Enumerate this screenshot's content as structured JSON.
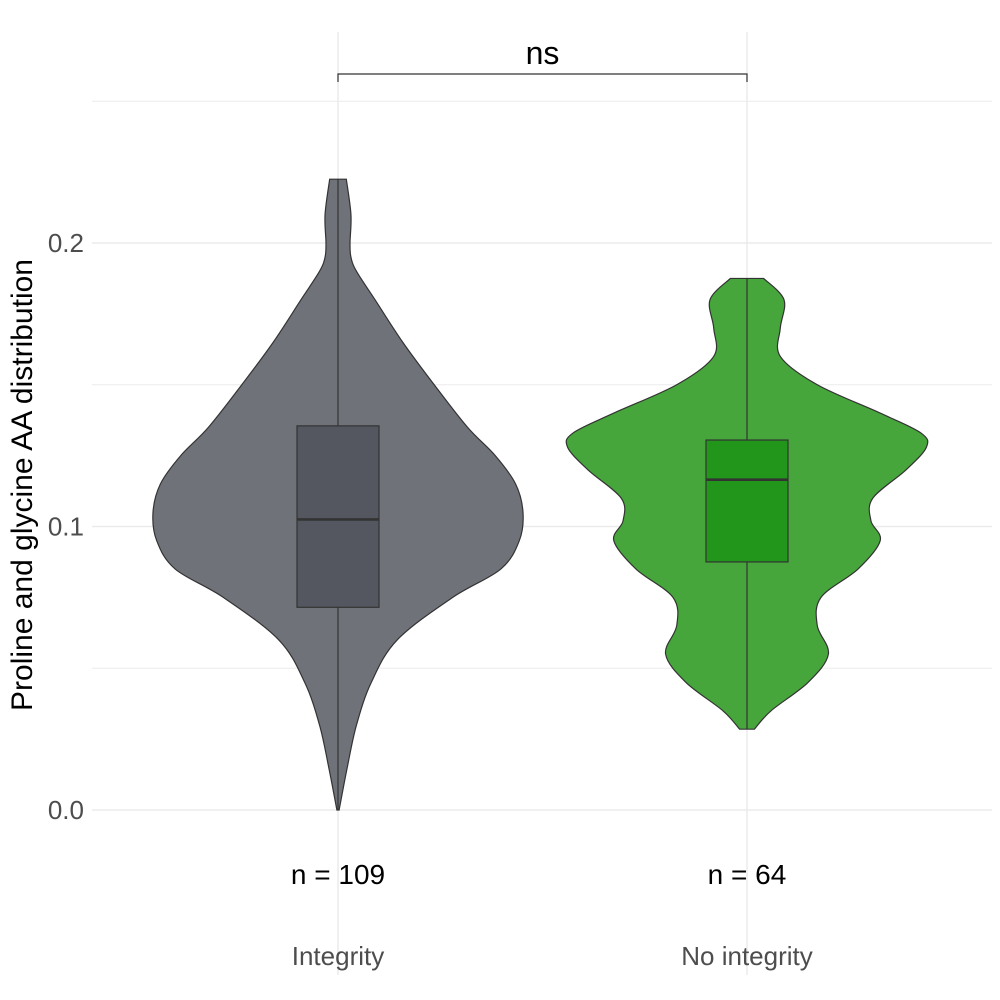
{
  "chart_data": {
    "type": "violin",
    "title": "",
    "xlabel": "",
    "ylabel": "Proline and glycine AA distribution",
    "ylim": [
      -0.045,
      0.277
    ],
    "y_ticks": [
      0.0,
      0.1,
      0.2
    ],
    "y_tick_labels": [
      "0.0",
      "0.1",
      "0.2"
    ],
    "y_minor_ticks": [
      0.05,
      0.15,
      0.25
    ],
    "grid": true,
    "legend": "none",
    "categories": [
      "Integrity",
      "No integrity"
    ],
    "groups": [
      {
        "name": "Integrity",
        "n_label": "n = 109",
        "color": "#6f7279",
        "box_color": "#545760",
        "min": 0.0,
        "max": 0.2225,
        "q1": 0.0715,
        "median": 0.1025,
        "q3": 0.1355,
        "density": [
          [
            0.0,
            0.006
          ],
          [
            0.015,
            0.05
          ],
          [
            0.03,
            0.1
          ],
          [
            0.045,
            0.18
          ],
          [
            0.06,
            0.32
          ],
          [
            0.075,
            0.62
          ],
          [
            0.085,
            0.88
          ],
          [
            0.095,
            0.98
          ],
          [
            0.105,
            1.0
          ],
          [
            0.115,
            0.96
          ],
          [
            0.125,
            0.85
          ],
          [
            0.135,
            0.7
          ],
          [
            0.15,
            0.52
          ],
          [
            0.165,
            0.35
          ],
          [
            0.18,
            0.2
          ],
          [
            0.19,
            0.1
          ],
          [
            0.195,
            0.07
          ],
          [
            0.2,
            0.065
          ],
          [
            0.21,
            0.07
          ],
          [
            0.2225,
            0.045
          ]
        ]
      },
      {
        "name": "No integrity",
        "n_label": "n = 64",
        "color": "#46a63b",
        "box_color": "#22961b",
        "min": 0.0285,
        "max": 0.1875,
        "q1": 0.0875,
        "median": 0.1165,
        "q3": 0.1305,
        "density": [
          [
            0.0285,
            0.04
          ],
          [
            0.035,
            0.13
          ],
          [
            0.045,
            0.33
          ],
          [
            0.055,
            0.44
          ],
          [
            0.065,
            0.38
          ],
          [
            0.075,
            0.4
          ],
          [
            0.085,
            0.6
          ],
          [
            0.095,
            0.72
          ],
          [
            0.102,
            0.67
          ],
          [
            0.11,
            0.68
          ],
          [
            0.12,
            0.86
          ],
          [
            0.128,
            0.97
          ],
          [
            0.133,
            0.94
          ],
          [
            0.14,
            0.72
          ],
          [
            0.15,
            0.38
          ],
          [
            0.16,
            0.18
          ],
          [
            0.17,
            0.18
          ],
          [
            0.18,
            0.2
          ],
          [
            0.1875,
            0.09
          ]
        ]
      }
    ],
    "comparison": {
      "groups": [
        "Integrity",
        "No integrity"
      ],
      "label": "ns"
    }
  },
  "colors": {
    "outline": "#333333",
    "grid": "#ebebeb"
  }
}
